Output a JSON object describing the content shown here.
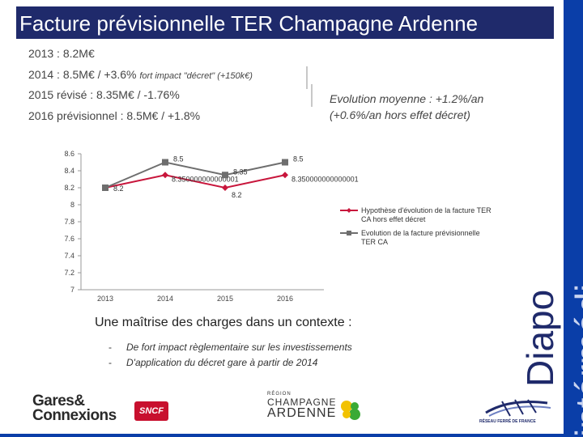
{
  "title": "Facture prévisionnelle TER Champagne Ardenne",
  "side_text": "Diapo",
  "side_text_faint": "intérmédi",
  "lines": [
    {
      "main": "2013 : 8.2M€",
      "note": ""
    },
    {
      "main": "2014 : 8.5M€ / +3.6% ",
      "note": "fort impact \"décret\" (+150k€)"
    },
    {
      "main": "2015 révisé : 8.35M€ / -1.76%",
      "note": ""
    },
    {
      "main": "2016 prévisionnel : 8.5M€ / +1.8%",
      "note": ""
    }
  ],
  "evolution": {
    "line1": "Evolution moyenne : +1.2%/an",
    "line2": "(+0.6%/an hors effet décret)"
  },
  "chart_data": {
    "type": "line",
    "categories": [
      "2013",
      "2014",
      "2015",
      "2016"
    ],
    "ylim": [
      7,
      8.6
    ],
    "yticks": [
      "7",
      "7.2",
      "7.4",
      "7.6",
      "7.8",
      "8",
      "8.2",
      "8.4",
      "8.6"
    ],
    "series": [
      {
        "name": "Hypothèse d'évolution de la facture TER CA hors effet décret",
        "values": [
          8.2,
          8.35,
          8.2,
          8.35
        ],
        "color": "#c8163c",
        "marker": "diamond",
        "labels": [
          "",
          "8.350000000000001",
          "8.2",
          "8.350000000000001"
        ]
      },
      {
        "name": "Evolution de la facture prévisionnelle TER CA",
        "values": [
          8.2,
          8.5,
          8.35,
          8.5
        ],
        "color": "#6e6e6e",
        "marker": "square",
        "labels": [
          "8.2",
          "8.5",
          "8.35",
          "8.5"
        ]
      }
    ]
  },
  "subtitle": "Une maîtrise des charges dans un contexte :",
  "bullets": [
    {
      "dash": "-",
      "text": "De fort impact règlementaire sur les investissements"
    },
    {
      "dash": "-",
      "text": "D'application du décret gare à partir de 2014"
    }
  ],
  "logos": {
    "gares_line1": "Gares&",
    "gares_line2": "Connexions",
    "sncf": "SNCF",
    "region_small": "RÉGION",
    "region_line1": "CHAMPAGNE",
    "region_line2": "ARDENNE",
    "rff": "RÉSEAU FERRÉ DE FRANCE"
  }
}
